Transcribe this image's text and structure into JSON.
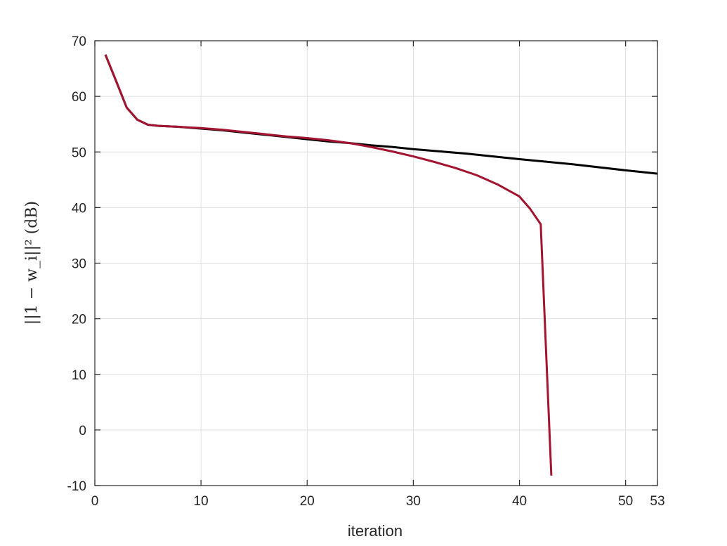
{
  "chart_data": {
    "type": "line",
    "title": "",
    "xlabel": "iteration",
    "ylabel": "||1 − w_i||² (dB)",
    "xlim": [
      0,
      53
    ],
    "ylim": [
      -10,
      70
    ],
    "xticks": [
      0,
      10,
      20,
      30,
      40,
      50,
      53
    ],
    "yticks": [
      -10,
      0,
      10,
      20,
      30,
      40,
      50,
      60,
      70
    ],
    "grid": true,
    "legend": "none",
    "series": [
      {
        "color": "#000000",
        "x": [
          1,
          2,
          3,
          4,
          5,
          6,
          8,
          10,
          12,
          14,
          16,
          18,
          20,
          22,
          24,
          26,
          28,
          30,
          35,
          40,
          45,
          50,
          53
        ],
        "y": [
          67.5,
          62.8,
          58.0,
          55.8,
          54.9,
          54.7,
          54.5,
          54.2,
          53.9,
          53.5,
          53.1,
          52.7,
          52.3,
          51.9,
          51.6,
          51.2,
          50.9,
          50.5,
          49.7,
          48.7,
          47.8,
          46.7,
          46.1
        ]
      },
      {
        "color": "#a2142f",
        "x": [
          1,
          2,
          3,
          4,
          5,
          6,
          8,
          10,
          12,
          14,
          16,
          18,
          20,
          22,
          24,
          26,
          28,
          30,
          32,
          34,
          36,
          38,
          40,
          41,
          42,
          43
        ],
        "y": [
          67.5,
          62.8,
          58.0,
          55.8,
          54.9,
          54.7,
          54.5,
          54.3,
          54.0,
          53.6,
          53.2,
          52.8,
          52.5,
          52.1,
          51.6,
          50.9,
          50.1,
          49.2,
          48.2,
          47.1,
          45.8,
          44.1,
          42.0,
          39.8,
          37.0,
          -8.2
        ]
      }
    ]
  }
}
